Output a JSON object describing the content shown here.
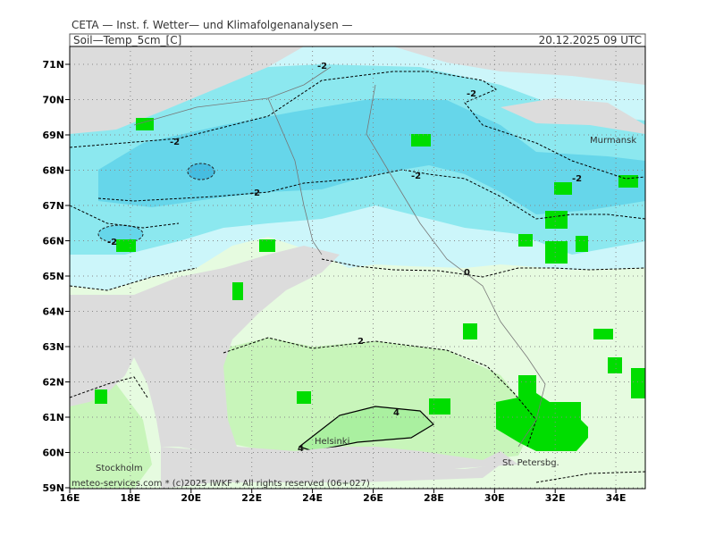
{
  "header": {
    "institute": "CETA — Inst. f. Wetter— und Klimafolgenanalysen —",
    "parameter": "Soil—Temp_5cm_[C]",
    "datetime": "20.12.2025 09 UTC"
  },
  "axes": {
    "lon_ticks": [
      {
        "value": 16,
        "label": "16E"
      },
      {
        "value": 18,
        "label": "18E"
      },
      {
        "value": 20,
        "label": "20E"
      },
      {
        "value": 22,
        "label": "22E"
      },
      {
        "value": 24,
        "label": "24E"
      },
      {
        "value": 26,
        "label": "26E"
      },
      {
        "value": 28,
        "label": "28E"
      },
      {
        "value": 30,
        "label": "30E"
      },
      {
        "value": 32,
        "label": "32E"
      },
      {
        "value": 34,
        "label": "34E"
      }
    ],
    "lat_ticks": [
      {
        "value": 71,
        "label": "71N"
      },
      {
        "value": 70,
        "label": "70N"
      },
      {
        "value": 69,
        "label": "69N"
      },
      {
        "value": 68,
        "label": "68N"
      },
      {
        "value": 67,
        "label": "67N"
      },
      {
        "value": 66,
        "label": "66N"
      },
      {
        "value": 65,
        "label": "65N"
      },
      {
        "value": 64,
        "label": "64N"
      },
      {
        "value": 63,
        "label": "63N"
      },
      {
        "value": 62,
        "label": "62N"
      },
      {
        "value": 61,
        "label": "61N"
      },
      {
        "value": 60,
        "label": "60N"
      },
      {
        "value": 59,
        "label": "59N"
      }
    ]
  },
  "places": [
    "Murmansk",
    "Helsinki",
    "Stockholm",
    "St. Petersbg."
  ],
  "contour_labels": [
    "-2",
    "-2",
    "-2",
    "-2",
    "-2",
    "-2",
    "-2",
    "0",
    "2",
    "4",
    "4"
  ],
  "footer": "meteo-services.com * (c)2025 IWKF * All rights reserved (06+027)"
}
